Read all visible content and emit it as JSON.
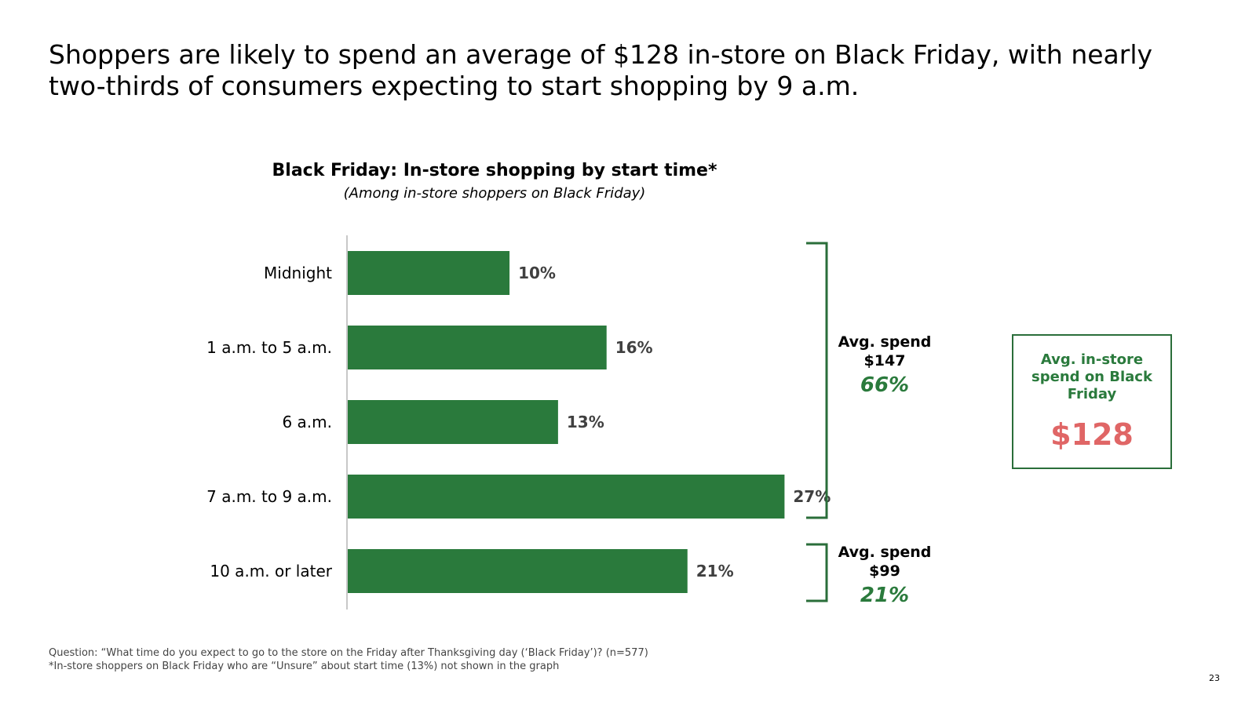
{
  "headline": "Shoppers are likely to spend an average of $128 in-store on Black Friday, with nearly two-thirds of consumers expecting to start shopping by 9 a.m.",
  "chart_data": {
    "type": "bar",
    "orientation": "horizontal",
    "title": "Black Friday: In-store shopping by start time*",
    "subtitle": "(Among in-store shoppers on Black Friday)",
    "categories": [
      "Midnight",
      "1 a.m. to 5 a.m.",
      "6 a.m.",
      "7 a.m. to 9 a.m.",
      "10 a.m. or later"
    ],
    "values": [
      10,
      16,
      13,
      27,
      21
    ],
    "value_labels": [
      "10%",
      "16%",
      "13%",
      "27%",
      "21%"
    ],
    "unit": "%",
    "xlim": [
      0,
      28
    ],
    "grid": false,
    "bar_color": "#2a7a3c"
  },
  "brackets": [
    {
      "label_line1": "Avg. spend",
      "label_line2": "$147",
      "pct": "66%"
    },
    {
      "label_line1": "Avg. spend",
      "label_line2": "$99",
      "pct": "21%"
    }
  ],
  "avg_box": {
    "label": "Avg. in-store spend on Black Friday",
    "value": "$128"
  },
  "notes": {
    "question": "Question: “What time do you expect to go to the store on the Friday after Thanksgiving day (‘Black Friday’)? (n=577)",
    "footnote": "*In-store shoppers on Black Friday who are “Unsure” about start time (13%) not shown in the graph"
  },
  "page_number": "23",
  "colors": {
    "accent_green": "#2a7a3c",
    "bracket_green": "#2a6e3a",
    "highlight_red": "#e06666"
  }
}
